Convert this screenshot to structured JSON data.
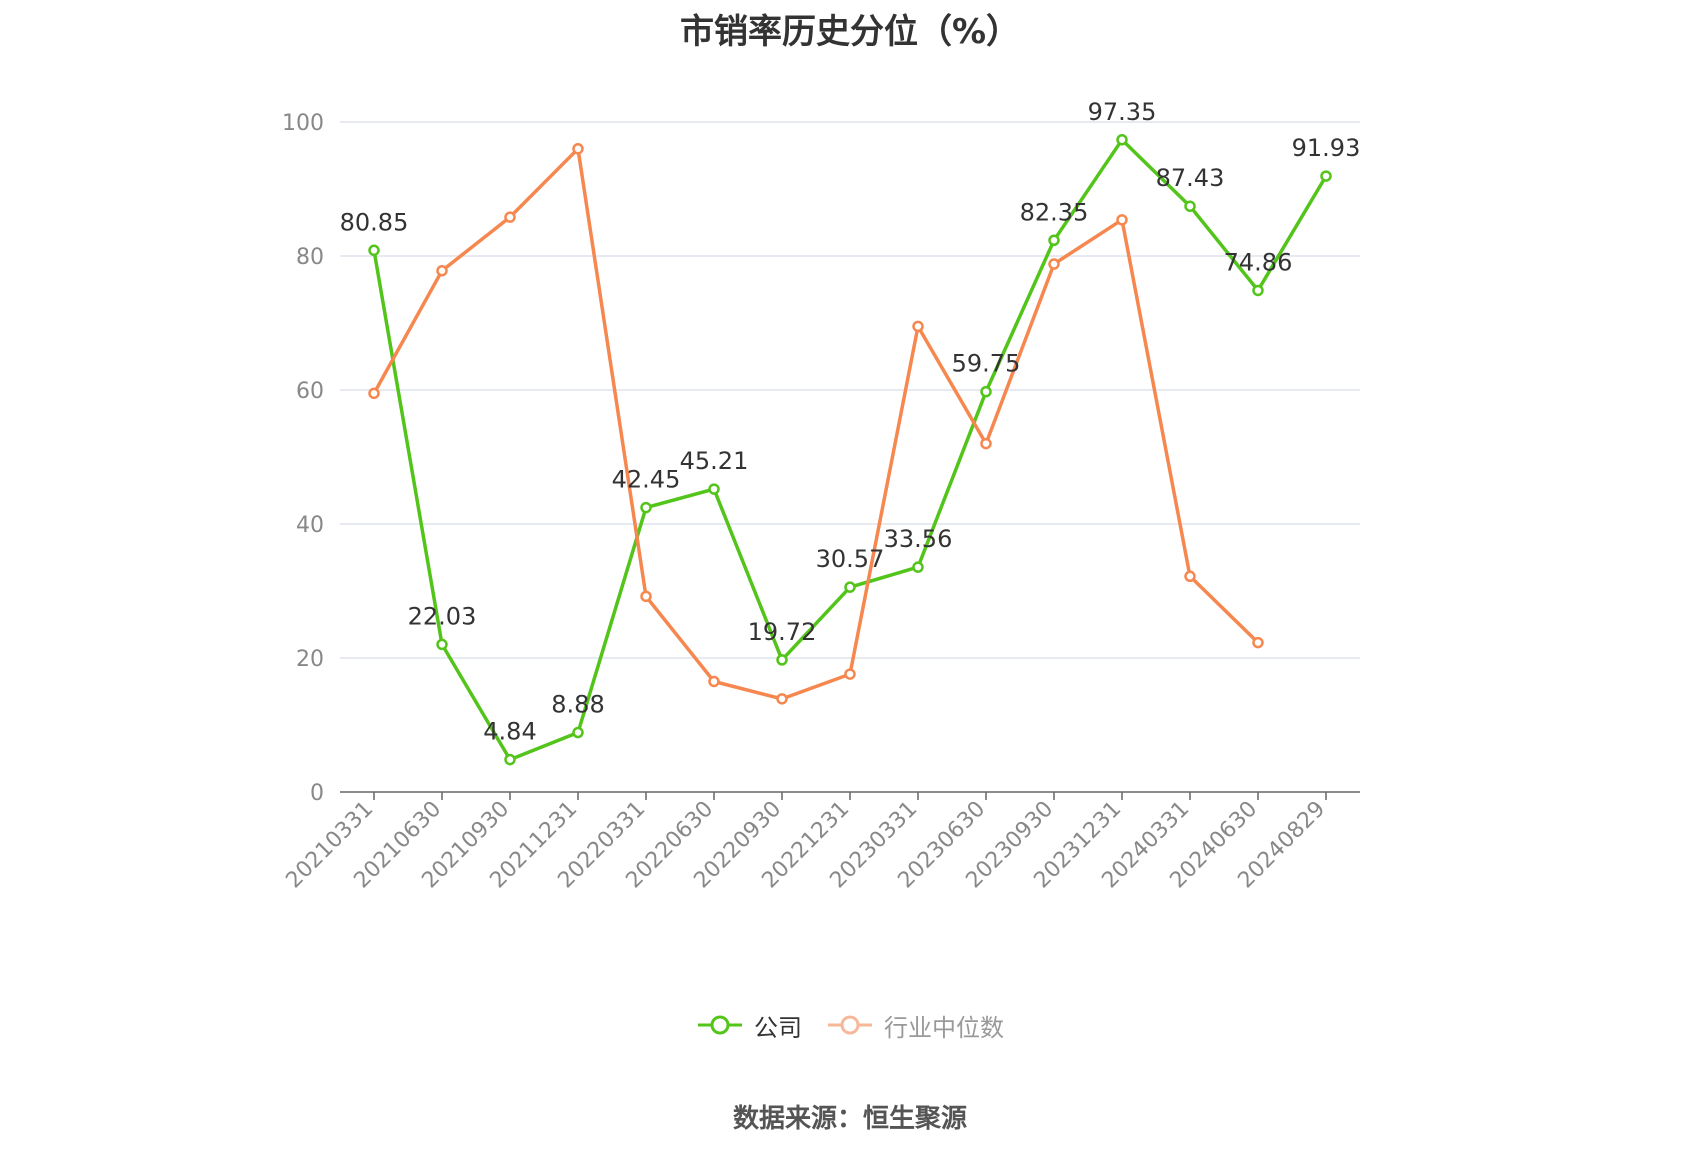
{
  "title": "市销率历史分位（%）",
  "source": "数据来源：恒生聚源",
  "colors": {
    "company": "#52c41a",
    "industry": "#f5874f",
    "grid": "#e0e3ee",
    "axis": "#666666",
    "tick_text": "#888888"
  },
  "chart_data": {
    "type": "line",
    "title": "市销率历史分位（%）",
    "xlabel": "",
    "ylabel": "",
    "ylim": [
      0,
      100
    ],
    "yticks": [
      0,
      20,
      40,
      60,
      80,
      100
    ],
    "grid": true,
    "legend_position": "bottom-center",
    "categories": [
      "20210331",
      "20210630",
      "20210930",
      "20211231",
      "20220331",
      "20220630",
      "20220930",
      "20221231",
      "20230331",
      "20230630",
      "20230930",
      "20231231",
      "20240331",
      "20240630",
      "20240829"
    ],
    "series": [
      {
        "name": "公司",
        "color": "#52c41a",
        "show_labels": true,
        "values": [
          80.85,
          22.03,
          4.84,
          8.88,
          42.45,
          45.21,
          19.72,
          30.57,
          33.56,
          59.75,
          82.35,
          97.35,
          87.43,
          74.86,
          91.93
        ]
      },
      {
        "name": "行业中位数",
        "color": "#f5874f",
        "show_labels": false,
        "values": [
          59.5,
          77.8,
          85.8,
          96.0,
          29.2,
          16.5,
          13.9,
          17.6,
          69.5,
          52.0,
          78.8,
          85.4,
          32.2,
          22.3,
          null
        ]
      }
    ]
  }
}
